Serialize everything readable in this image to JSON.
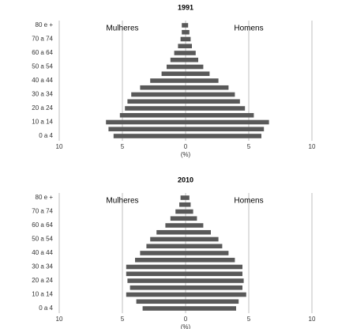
{
  "chart_data": [
    {
      "type": "pyramid",
      "title": "1991",
      "x_label": "(%)",
      "categories": [
        "0 a 4",
        null,
        "10 a 14",
        null,
        "20 a 24",
        null,
        "30 a 34",
        null,
        "40 a 44",
        null,
        "50 a 54",
        null,
        "60 a 64",
        null,
        "70 a 74",
        null,
        "80 e +"
      ],
      "series": [
        {
          "name": "Mulheres",
          "color": "#595959",
          "values": [
            -5.7,
            -6.1,
            -6.3,
            -5.2,
            -4.8,
            -4.6,
            -4.3,
            -3.6,
            -2.8,
            -1.9,
            -1.5,
            -1.2,
            -0.9,
            -0.6,
            -0.4,
            -0.3,
            -0.3
          ]
        },
        {
          "name": "Homens",
          "color": "#595959",
          "values": [
            6.0,
            6.2,
            6.6,
            5.4,
            4.7,
            4.3,
            3.9,
            3.4,
            2.6,
            1.9,
            1.4,
            1.0,
            0.8,
            0.5,
            0.4,
            0.3,
            0.2
          ]
        }
      ],
      "xlim": [
        -10,
        10
      ],
      "xticks": [
        {
          "value": -10,
          "label": "10"
        },
        {
          "value": -5,
          "label": "5"
        },
        0,
        5,
        10
      ],
      "grid": true
    },
    {
      "type": "pyramid",
      "title": "2010",
      "x_label": "(%)",
      "categories": [
        "0 a 4",
        null,
        "10 a 14",
        null,
        "20 a 24",
        null,
        "30 a 34",
        null,
        "40 a 44",
        null,
        "50 a 54",
        null,
        "60 a 64",
        null,
        "70 a 74",
        null,
        "80 e +"
      ],
      "series": [
        {
          "name": "Mulheres",
          "color": "#595959",
          "values": [
            -3.4,
            -3.9,
            -4.7,
            -4.4,
            -4.6,
            -4.7,
            -4.7,
            -4.0,
            -3.6,
            -3.1,
            -2.8,
            -2.3,
            -1.6,
            -1.2,
            -0.8,
            -0.5,
            -0.4
          ]
        },
        {
          "name": "Homens",
          "color": "#595959",
          "values": [
            4.0,
            4.2,
            4.8,
            4.5,
            4.6,
            4.5,
            4.5,
            3.9,
            3.4,
            2.9,
            2.6,
            2.0,
            1.4,
            0.9,
            0.6,
            0.4,
            0.3
          ]
        }
      ],
      "xlim": [
        -10,
        10
      ],
      "xticks": [
        {
          "value": -10,
          "label": "10"
        },
        {
          "value": -5,
          "label": "5"
        },
        0,
        5,
        10
      ],
      "grid": true
    }
  ]
}
